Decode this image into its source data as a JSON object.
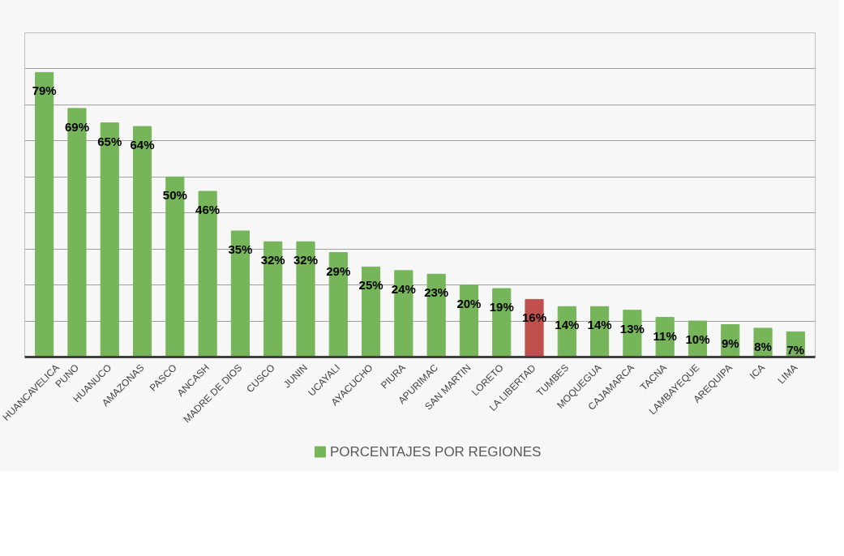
{
  "chart_data": {
    "type": "bar",
    "categories": [
      "HUANCAVELICA",
      "PUNO",
      "HUANUCO",
      "AMAZONAS",
      "PASCO",
      "ANCASH",
      "MADRE DE DIOS",
      "CUSCO",
      "JUNIN",
      "UCAYALI",
      "AYACUCHO",
      "PIURA",
      "APURIMAC",
      "SAN MARTIN",
      "LORETO",
      "LA LIBERTAD",
      "TUMBES",
      "MOQUEGUA",
      "CAJAMARCA",
      "TACNA",
      "LAMBAYEQUE",
      "AREQUIPA",
      "ICA",
      "LIMA"
    ],
    "series": [
      {
        "name": "PORCENTAJES POR REGIONES",
        "color": "#77b55a",
        "values": [
          79,
          69,
          65,
          64,
          50,
          46,
          35,
          32,
          32,
          29,
          25,
          24,
          23,
          20,
          19,
          16,
          14,
          14,
          13,
          11,
          10,
          9,
          8,
          7
        ],
        "colors": [
          "#77b55a",
          "#77b55a",
          "#77b55a",
          "#77b55a",
          "#77b55a",
          "#77b55a",
          "#77b55a",
          "#77b55a",
          "#77b55a",
          "#77b55a",
          "#77b55a",
          "#77b55a",
          "#77b55a",
          "#77b55a",
          "#77b55a",
          "#c0504d",
          "#77b55a",
          "#77b55a",
          "#77b55a",
          "#77b55a",
          "#77b55a",
          "#77b55a",
          "#77b55a",
          "#77b55a"
        ],
        "value_labels": [
          "79%",
          "69%",
          "65%",
          "64%",
          "50%",
          "46%",
          "35%",
          "32%",
          "32%",
          "29%",
          "25%",
          "24%",
          "23%",
          "20%",
          "19%",
          "16%",
          "14%",
          "14%",
          "13%",
          "11%",
          "10%",
          "9%",
          "8%",
          "7%"
        ]
      }
    ],
    "ylim": [
      0,
      90
    ],
    "yticks": [
      {
        "value": 10,
        "label": null
      },
      {
        "value": 20,
        "label": null
      },
      {
        "value": 30,
        "label": null
      },
      {
        "value": 40,
        "label": null
      },
      {
        "value": 50,
        "label": null
      },
      {
        "value": 60,
        "label": null
      },
      {
        "value": 70,
        "label": null
      },
      {
        "value": 80,
        "label": null
      }
    ],
    "grid": "y",
    "legend": "bottom",
    "tick_labels": "x"
  }
}
